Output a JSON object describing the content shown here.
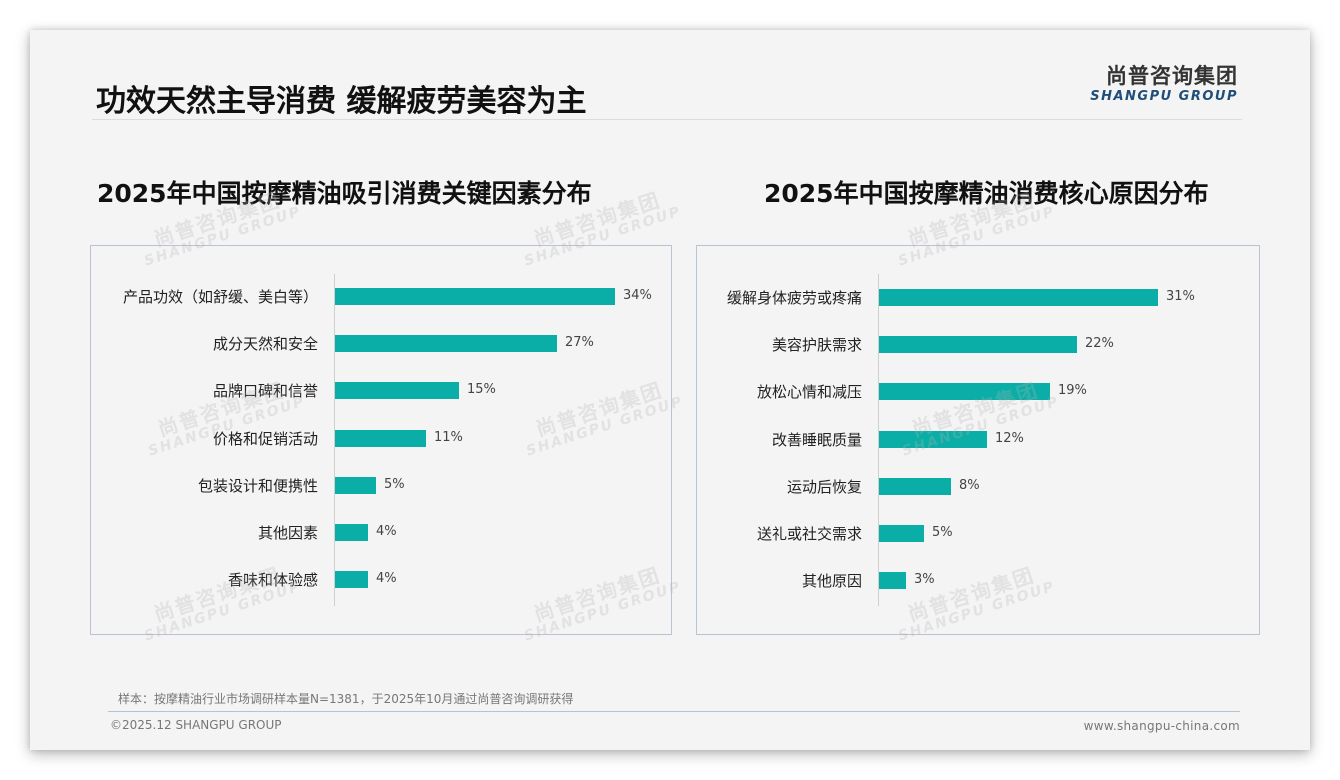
{
  "header": {
    "title": "功效天然主导消费 缓解疲劳美容为主",
    "logo_cn": "尚普咨询集团",
    "logo_en": "SHANGPU GROUP"
  },
  "watermark": {
    "cn": "尚普咨询集团",
    "en": "SHANGPU GROUP"
  },
  "colors": {
    "bar": "#0aaea6",
    "panel_border": "#b8c4d2",
    "background": "#f4f4f4"
  },
  "chart_data": [
    {
      "type": "bar",
      "orientation": "horizontal",
      "title": "2025年中国按摩精油吸引消费关键因素分布",
      "categories": [
        "产品功效（如舒缓、美白等）",
        "成分天然和安全",
        "品牌口碑和信誉",
        "价格和促销活动",
        "包装设计和便携性",
        "其他因素",
        "香味和体验感"
      ],
      "values": [
        34,
        27,
        15,
        11,
        5,
        4,
        4
      ],
      "labels": [
        "34%",
        "27%",
        "15%",
        "11%",
        "5%",
        "4%",
        "4%"
      ],
      "unit": "%",
      "xlabel": "",
      "ylabel": "",
      "grid": false,
      "legend": "none"
    },
    {
      "type": "bar",
      "orientation": "horizontal",
      "title": "2025年中国按摩精油消费核心原因分布",
      "categories": [
        "缓解身体疲劳或疼痛",
        "美容护肤需求",
        "放松心情和减压",
        "改善睡眠质量",
        "运动后恢复",
        "送礼或社交需求",
        "其他原因"
      ],
      "values": [
        31,
        22,
        19,
        12,
        8,
        5,
        3
      ],
      "labels": [
        "31%",
        "22%",
        "19%",
        "12%",
        "8%",
        "5%",
        "3%"
      ],
      "unit": "%",
      "xlabel": "",
      "ylabel": "",
      "grid": false,
      "legend": "none"
    }
  ],
  "footer": {
    "source_note": "样本：按摩精油行业市场调研样本量N=1381，于2025年10月通过尚普咨询调研获得",
    "copyright": "©2025.12 SHANGPU GROUP",
    "website": "www.shangpu-china.com"
  }
}
